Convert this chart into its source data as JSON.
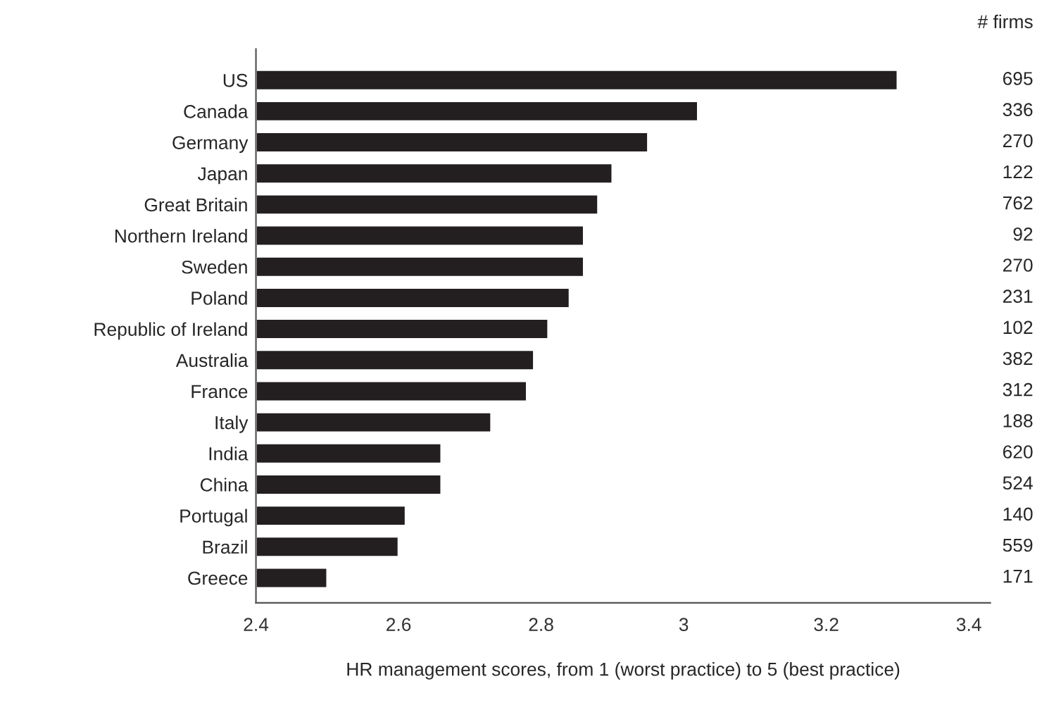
{
  "chart_data": {
    "type": "bar",
    "orientation": "horizontal",
    "xlabel": "HR management scores, from 1 (worst practice) to 5 (best practice)",
    "categories": [
      "US",
      "Canada",
      "Germany",
      "Japan",
      "Great Britain",
      "Northern Ireland",
      "Sweden",
      "Poland",
      "Republic of Ireland",
      "Australia",
      "France",
      "Italy",
      "India",
      "China",
      "Portugal",
      "Brazil",
      "Greece"
    ],
    "values": [
      3.3,
      3.02,
      2.95,
      2.9,
      2.88,
      2.86,
      2.86,
      2.84,
      2.81,
      2.79,
      2.78,
      2.73,
      2.66,
      2.66,
      2.61,
      2.6,
      2.5
    ],
    "color": "#231f20",
    "xlim": [
      2.4,
      3.43
    ],
    "xticks": [
      2.4,
      2.6,
      2.8,
      3,
      3.2,
      3.4
    ],
    "grid": false,
    "legend": false,
    "annotations": [
      "# firms",
      "695",
      "336",
      "270",
      "122",
      "762",
      "92",
      "270",
      "231",
      "102",
      "382",
      "312",
      "188",
      "620",
      "524",
      "140",
      "559",
      "171"
    ]
  }
}
